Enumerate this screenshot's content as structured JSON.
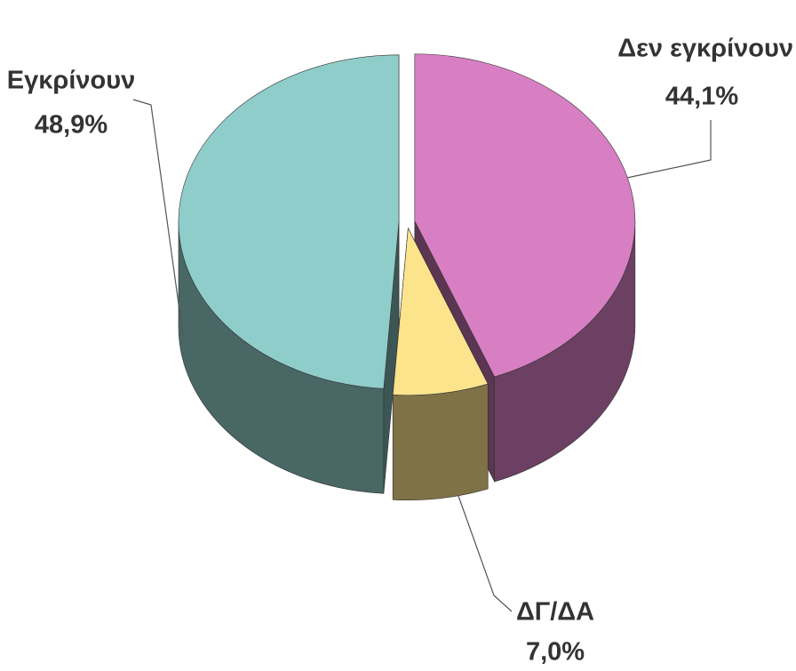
{
  "chart_data": {
    "type": "pie",
    "categories": [
      "Εγκρίνουν",
      "Δεν εγκρίνουν",
      "ΔΓ/ΔΑ"
    ],
    "values": [
      48.9,
      44.1,
      7.0
    ],
    "value_labels": [
      "48,9%",
      "44,1%",
      "7,0%"
    ],
    "colors": [
      "#8fcdca",
      "#d87fc3",
      "#fbe48c"
    ],
    "three_d": true,
    "exploded": true
  }
}
